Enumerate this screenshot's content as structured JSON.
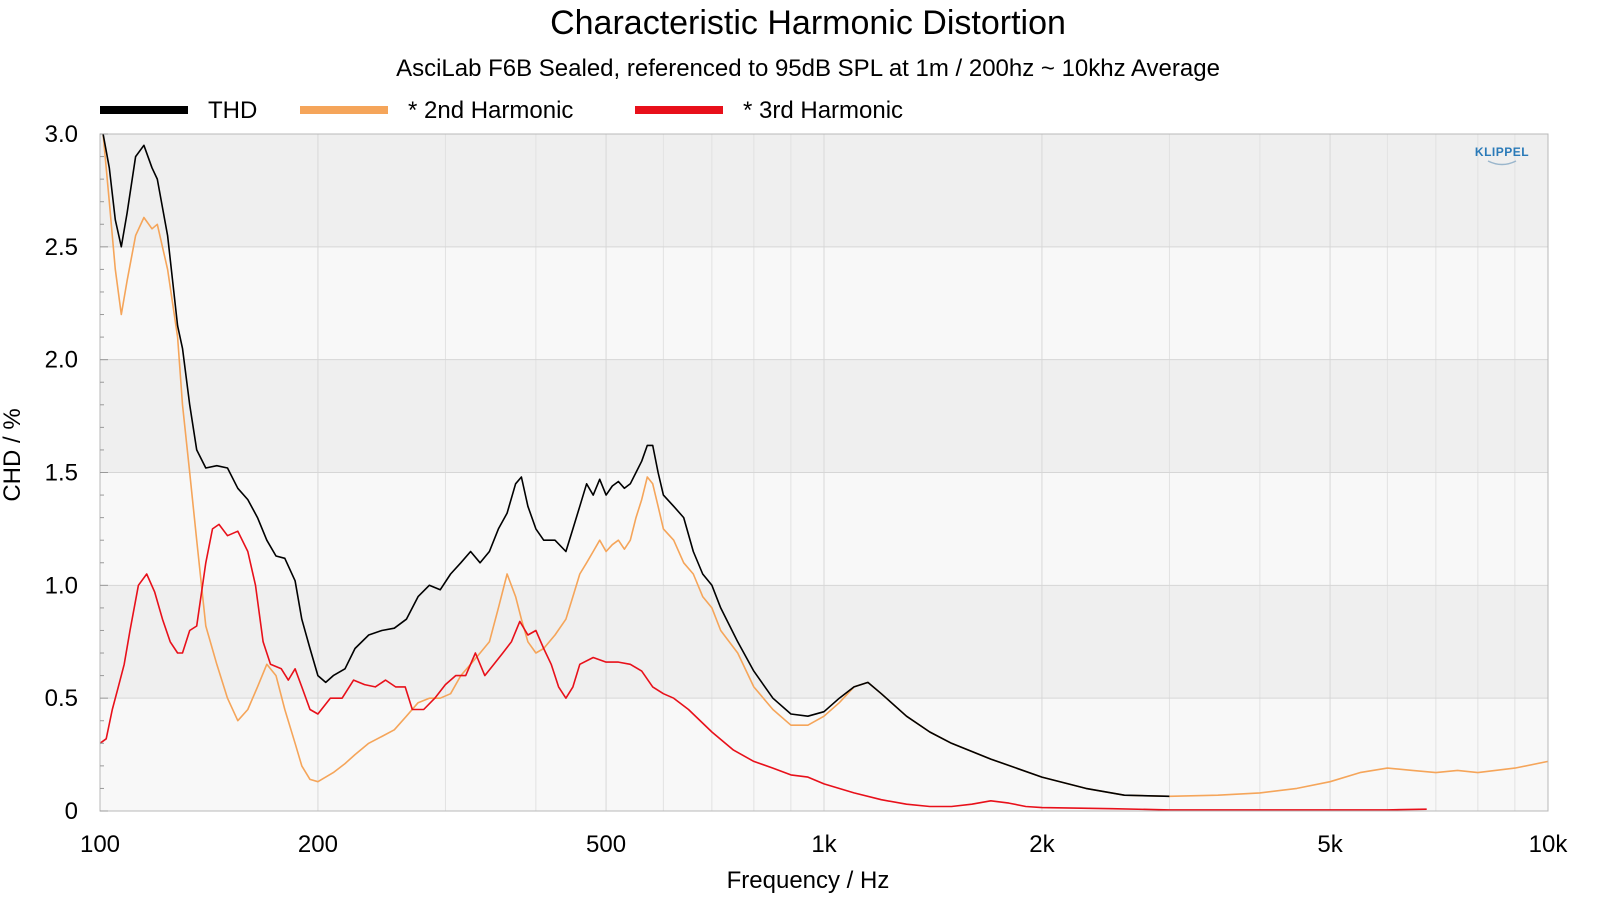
{
  "chart_data": {
    "type": "line",
    "title": "Characteristic Harmonic Distortion",
    "subtitle": "AsciLab F6B Sealed, referenced to 95dB SPL at 1m / 200hz ~ 10khz Average",
    "xlabel": "Frequency / Hz",
    "ylabel": "CHD / %",
    "x_scale": "log",
    "xlim": [
      100,
      10000
    ],
    "ylim": [
      0,
      3.0
    ],
    "x_ticks": [
      100,
      200,
      500,
      1000,
      2000,
      5000,
      10000
    ],
    "x_tick_labels": [
      "100",
      "200",
      "500",
      "1k",
      "2k",
      "5k",
      "10k"
    ],
    "y_ticks": [
      0,
      0.5,
      1.0,
      1.5,
      2.0,
      2.5,
      3.0
    ],
    "y_tick_labels": [
      "0",
      "0.5",
      "1.0",
      "1.5",
      "2.0",
      "2.5",
      "3.0"
    ],
    "grid": true,
    "legend_position": "top-left",
    "logo_text": "KLIPPEL",
    "series": [
      {
        "name": "THD",
        "color": "#000000",
        "points": [
          [
            101,
            3.0
          ],
          [
            103,
            2.85
          ],
          [
            105,
            2.62
          ],
          [
            107,
            2.5
          ],
          [
            109,
            2.65
          ],
          [
            112,
            2.9
          ],
          [
            115,
            2.95
          ],
          [
            118,
            2.85
          ],
          [
            120,
            2.8
          ],
          [
            124,
            2.55
          ],
          [
            128,
            2.15
          ],
          [
            130,
            2.05
          ],
          [
            133,
            1.8
          ],
          [
            136,
            1.6
          ],
          [
            140,
            1.52
          ],
          [
            145,
            1.53
          ],
          [
            150,
            1.52
          ],
          [
            155,
            1.43
          ],
          [
            160,
            1.38
          ],
          [
            165,
            1.3
          ],
          [
            170,
            1.2
          ],
          [
            175,
            1.13
          ],
          [
            180,
            1.12
          ],
          [
            186,
            1.02
          ],
          [
            190,
            0.85
          ],
          [
            195,
            0.72
          ],
          [
            200,
            0.6
          ],
          [
            205,
            0.57
          ],
          [
            210,
            0.6
          ],
          [
            218,
            0.63
          ],
          [
            225,
            0.72
          ],
          [
            235,
            0.78
          ],
          [
            245,
            0.8
          ],
          [
            255,
            0.81
          ],
          [
            265,
            0.85
          ],
          [
            275,
            0.95
          ],
          [
            285,
            1.0
          ],
          [
            295,
            0.98
          ],
          [
            305,
            1.05
          ],
          [
            315,
            1.1
          ],
          [
            325,
            1.15
          ],
          [
            335,
            1.1
          ],
          [
            345,
            1.15
          ],
          [
            355,
            1.25
          ],
          [
            365,
            1.32
          ],
          [
            375,
            1.45
          ],
          [
            382,
            1.48
          ],
          [
            390,
            1.35
          ],
          [
            400,
            1.25
          ],
          [
            410,
            1.2
          ],
          [
            425,
            1.2
          ],
          [
            440,
            1.15
          ],
          [
            450,
            1.25
          ],
          [
            460,
            1.35
          ],
          [
            470,
            1.45
          ],
          [
            480,
            1.4
          ],
          [
            490,
            1.47
          ],
          [
            500,
            1.4
          ],
          [
            510,
            1.44
          ],
          [
            520,
            1.46
          ],
          [
            530,
            1.43
          ],
          [
            540,
            1.45
          ],
          [
            550,
            1.5
          ],
          [
            560,
            1.55
          ],
          [
            570,
            1.62
          ],
          [
            580,
            1.62
          ],
          [
            590,
            1.5
          ],
          [
            600,
            1.4
          ],
          [
            620,
            1.35
          ],
          [
            640,
            1.3
          ],
          [
            660,
            1.15
          ],
          [
            680,
            1.05
          ],
          [
            700,
            1.0
          ],
          [
            720,
            0.9
          ],
          [
            760,
            0.75
          ],
          [
            800,
            0.62
          ],
          [
            850,
            0.5
          ],
          [
            900,
            0.43
          ],
          [
            950,
            0.42
          ],
          [
            1000,
            0.44
          ],
          [
            1050,
            0.5
          ],
          [
            1100,
            0.55
          ],
          [
            1150,
            0.57
          ],
          [
            1200,
            0.52
          ],
          [
            1300,
            0.42
          ],
          [
            1400,
            0.35
          ],
          [
            1500,
            0.3
          ],
          [
            1700,
            0.23
          ],
          [
            2000,
            0.15
          ],
          [
            2300,
            0.1
          ],
          [
            2600,
            0.07
          ],
          [
            3000,
            0.065
          ]
        ]
      },
      {
        "name": "* 2nd Harmonic",
        "color": "#f5a55a",
        "points": [
          [
            101,
            3.0
          ],
          [
            103,
            2.7
          ],
          [
            105,
            2.4
          ],
          [
            107,
            2.2
          ],
          [
            109,
            2.35
          ],
          [
            112,
            2.55
          ],
          [
            115,
            2.63
          ],
          [
            118,
            2.58
          ],
          [
            120,
            2.6
          ],
          [
            124,
            2.4
          ],
          [
            128,
            2.1
          ],
          [
            130,
            1.8
          ],
          [
            133,
            1.5
          ],
          [
            136,
            1.2
          ],
          [
            140,
            0.82
          ],
          [
            145,
            0.65
          ],
          [
            150,
            0.5
          ],
          [
            155,
            0.4
          ],
          [
            160,
            0.45
          ],
          [
            165,
            0.55
          ],
          [
            170,
            0.65
          ],
          [
            175,
            0.6
          ],
          [
            180,
            0.45
          ],
          [
            186,
            0.3
          ],
          [
            190,
            0.2
          ],
          [
            195,
            0.14
          ],
          [
            200,
            0.13
          ],
          [
            205,
            0.15
          ],
          [
            210,
            0.17
          ],
          [
            218,
            0.21
          ],
          [
            225,
            0.25
          ],
          [
            235,
            0.3
          ],
          [
            245,
            0.33
          ],
          [
            255,
            0.36
          ],
          [
            265,
            0.42
          ],
          [
            275,
            0.48
          ],
          [
            285,
            0.5
          ],
          [
            295,
            0.5
          ],
          [
            305,
            0.52
          ],
          [
            315,
            0.6
          ],
          [
            325,
            0.65
          ],
          [
            335,
            0.7
          ],
          [
            345,
            0.75
          ],
          [
            355,
            0.9
          ],
          [
            365,
            1.05
          ],
          [
            375,
            0.95
          ],
          [
            382,
            0.85
          ],
          [
            390,
            0.75
          ],
          [
            400,
            0.7
          ],
          [
            410,
            0.72
          ],
          [
            425,
            0.78
          ],
          [
            440,
            0.85
          ],
          [
            450,
            0.95
          ],
          [
            460,
            1.05
          ],
          [
            470,
            1.1
          ],
          [
            480,
            1.15
          ],
          [
            490,
            1.2
          ],
          [
            500,
            1.15
          ],
          [
            510,
            1.18
          ],
          [
            520,
            1.2
          ],
          [
            530,
            1.16
          ],
          [
            540,
            1.2
          ],
          [
            550,
            1.3
          ],
          [
            560,
            1.38
          ],
          [
            570,
            1.48
          ],
          [
            580,
            1.45
          ],
          [
            590,
            1.35
          ],
          [
            600,
            1.25
          ],
          [
            620,
            1.2
          ],
          [
            640,
            1.1
          ],
          [
            660,
            1.05
          ],
          [
            680,
            0.95
          ],
          [
            700,
            0.9
          ],
          [
            720,
            0.8
          ],
          [
            760,
            0.7
          ],
          [
            800,
            0.55
          ],
          [
            850,
            0.45
          ],
          [
            900,
            0.38
          ],
          [
            950,
            0.38
          ],
          [
            1000,
            0.42
          ],
          [
            1050,
            0.48
          ],
          [
            1100,
            0.55
          ],
          [
            1150,
            0.57
          ],
          [
            1200,
            0.52
          ],
          [
            1300,
            0.42
          ],
          [
            1400,
            0.35
          ],
          [
            1500,
            0.3
          ],
          [
            1700,
            0.23
          ],
          [
            2000,
            0.15
          ],
          [
            2300,
            0.1
          ],
          [
            2600,
            0.07
          ],
          [
            3000,
            0.065
          ],
          [
            3500,
            0.07
          ],
          [
            4000,
            0.08
          ],
          [
            4500,
            0.1
          ],
          [
            5000,
            0.13
          ],
          [
            5500,
            0.17
          ],
          [
            6000,
            0.19
          ],
          [
            6500,
            0.18
          ],
          [
            7000,
            0.17
          ],
          [
            7500,
            0.18
          ],
          [
            8000,
            0.17
          ],
          [
            9000,
            0.19
          ],
          [
            10000,
            0.22
          ]
        ]
      },
      {
        "name": "* 3rd Harmonic",
        "color": "#e8101a",
        "points": [
          [
            100,
            0.3
          ],
          [
            102,
            0.32
          ],
          [
            104,
            0.45
          ],
          [
            106,
            0.55
          ],
          [
            108,
            0.65
          ],
          [
            110,
            0.8
          ],
          [
            113,
            1.0
          ],
          [
            116,
            1.05
          ],
          [
            119,
            0.97
          ],
          [
            122,
            0.85
          ],
          [
            125,
            0.75
          ],
          [
            128,
            0.7
          ],
          [
            130,
            0.7
          ],
          [
            133,
            0.8
          ],
          [
            136,
            0.82
          ],
          [
            140,
            1.1
          ],
          [
            143,
            1.25
          ],
          [
            146,
            1.27
          ],
          [
            150,
            1.22
          ],
          [
            155,
            1.24
          ],
          [
            160,
            1.15
          ],
          [
            164,
            1.0
          ],
          [
            168,
            0.75
          ],
          [
            172,
            0.65
          ],
          [
            178,
            0.63
          ],
          [
            182,
            0.58
          ],
          [
            186,
            0.63
          ],
          [
            190,
            0.55
          ],
          [
            195,
            0.45
          ],
          [
            200,
            0.43
          ],
          [
            208,
            0.5
          ],
          [
            216,
            0.5
          ],
          [
            224,
            0.58
          ],
          [
            232,
            0.56
          ],
          [
            240,
            0.55
          ],
          [
            248,
            0.58
          ],
          [
            256,
            0.55
          ],
          [
            264,
            0.55
          ],
          [
            270,
            0.45
          ],
          [
            280,
            0.45
          ],
          [
            290,
            0.5
          ],
          [
            300,
            0.56
          ],
          [
            310,
            0.6
          ],
          [
            320,
            0.6
          ],
          [
            330,
            0.7
          ],
          [
            340,
            0.6
          ],
          [
            350,
            0.65
          ],
          [
            360,
            0.7
          ],
          [
            370,
            0.75
          ],
          [
            380,
            0.84
          ],
          [
            390,
            0.78
          ],
          [
            400,
            0.8
          ],
          [
            410,
            0.72
          ],
          [
            420,
            0.65
          ],
          [
            430,
            0.55
          ],
          [
            440,
            0.5
          ],
          [
            450,
            0.55
          ],
          [
            460,
            0.65
          ],
          [
            480,
            0.68
          ],
          [
            500,
            0.66
          ],
          [
            520,
            0.66
          ],
          [
            540,
            0.65
          ],
          [
            560,
            0.62
          ],
          [
            580,
            0.55
          ],
          [
            600,
            0.52
          ],
          [
            620,
            0.5
          ],
          [
            650,
            0.45
          ],
          [
            700,
            0.35
          ],
          [
            750,
            0.27
          ],
          [
            800,
            0.22
          ],
          [
            850,
            0.19
          ],
          [
            900,
            0.16
          ],
          [
            950,
            0.15
          ],
          [
            1000,
            0.12
          ],
          [
            1100,
            0.08
          ],
          [
            1200,
            0.05
          ],
          [
            1300,
            0.03
          ],
          [
            1400,
            0.02
          ],
          [
            1500,
            0.02
          ],
          [
            1600,
            0.03
          ],
          [
            1700,
            0.045
          ],
          [
            1800,
            0.035
          ],
          [
            1900,
            0.02
          ],
          [
            2000,
            0.015
          ],
          [
            2500,
            0.01
          ],
          [
            3000,
            0.005
          ],
          [
            4000,
            0.005
          ],
          [
            5000,
            0.005
          ],
          [
            6000,
            0.005
          ],
          [
            6800,
            0.008
          ]
        ]
      }
    ]
  }
}
